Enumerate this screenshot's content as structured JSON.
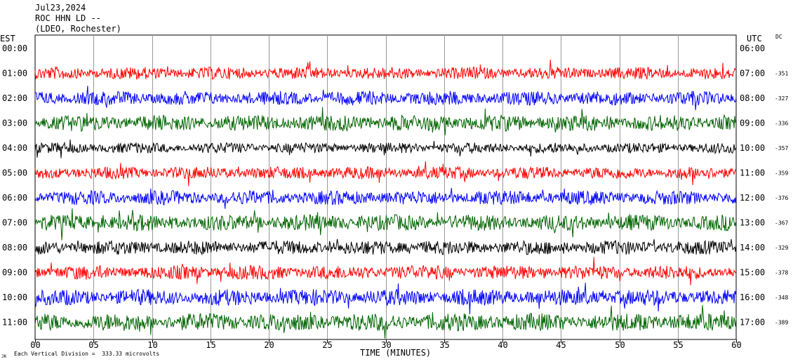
{
  "header": {
    "date": "Jul23,2024",
    "station": "ROC HHN LD --",
    "network": "(LDEO, Rochester)"
  },
  "left_axis_title": "EST",
  "right_axis_title": "UTC",
  "dc_title": "DC",
  "footer_note": "Each Vertical Division =  333.33 microvolts",
  "corner_mark": "JK",
  "chart_data": {
    "type": "line",
    "title": "",
    "xlabel": "TIME (MINUTES)",
    "ylabel": "",
    "xlim": [
      0,
      60
    ],
    "x_ticks": [
      "00",
      "05",
      "10",
      "15",
      "20",
      "25",
      "30",
      "35",
      "40",
      "45",
      "50",
      "55",
      "60"
    ],
    "grid": true,
    "series": [
      {
        "est": "00:00",
        "utc": "06:00",
        "dc": "",
        "color": "#ff0000",
        "amplitude": 0.0
      },
      {
        "est": "01:00",
        "utc": "07:00",
        "dc": "-351",
        "color": "#ff0000",
        "amplitude": 0.7
      },
      {
        "est": "02:00",
        "utc": "08:00",
        "dc": "-327",
        "color": "#0000ff",
        "amplitude": 0.8
      },
      {
        "est": "03:00",
        "utc": "09:00",
        "dc": "-336",
        "color": "#006400",
        "amplitude": 0.9
      },
      {
        "est": "04:00",
        "utc": "10:00",
        "dc": "-357",
        "color": "#000000",
        "amplitude": 0.6
      },
      {
        "est": "05:00",
        "utc": "11:00",
        "dc": "-359",
        "color": "#ff0000",
        "amplitude": 0.7
      },
      {
        "est": "06:00",
        "utc": "12:00",
        "dc": "-376",
        "color": "#0000ff",
        "amplitude": 0.8
      },
      {
        "est": "07:00",
        "utc": "13:00",
        "dc": "-367",
        "color": "#006400",
        "amplitude": 0.9
      },
      {
        "est": "08:00",
        "utc": "14:00",
        "dc": "-329",
        "color": "#000000",
        "amplitude": 0.8
      },
      {
        "est": "09:00",
        "utc": "15:00",
        "dc": "-378",
        "color": "#ff0000",
        "amplitude": 0.8
      },
      {
        "est": "10:00",
        "utc": "16:00",
        "dc": "-348",
        "color": "#0000ff",
        "amplitude": 0.9
      },
      {
        "est": "11:00",
        "utc": "17:00",
        "dc": "-389",
        "color": "#006400",
        "amplitude": 1.0
      }
    ]
  }
}
